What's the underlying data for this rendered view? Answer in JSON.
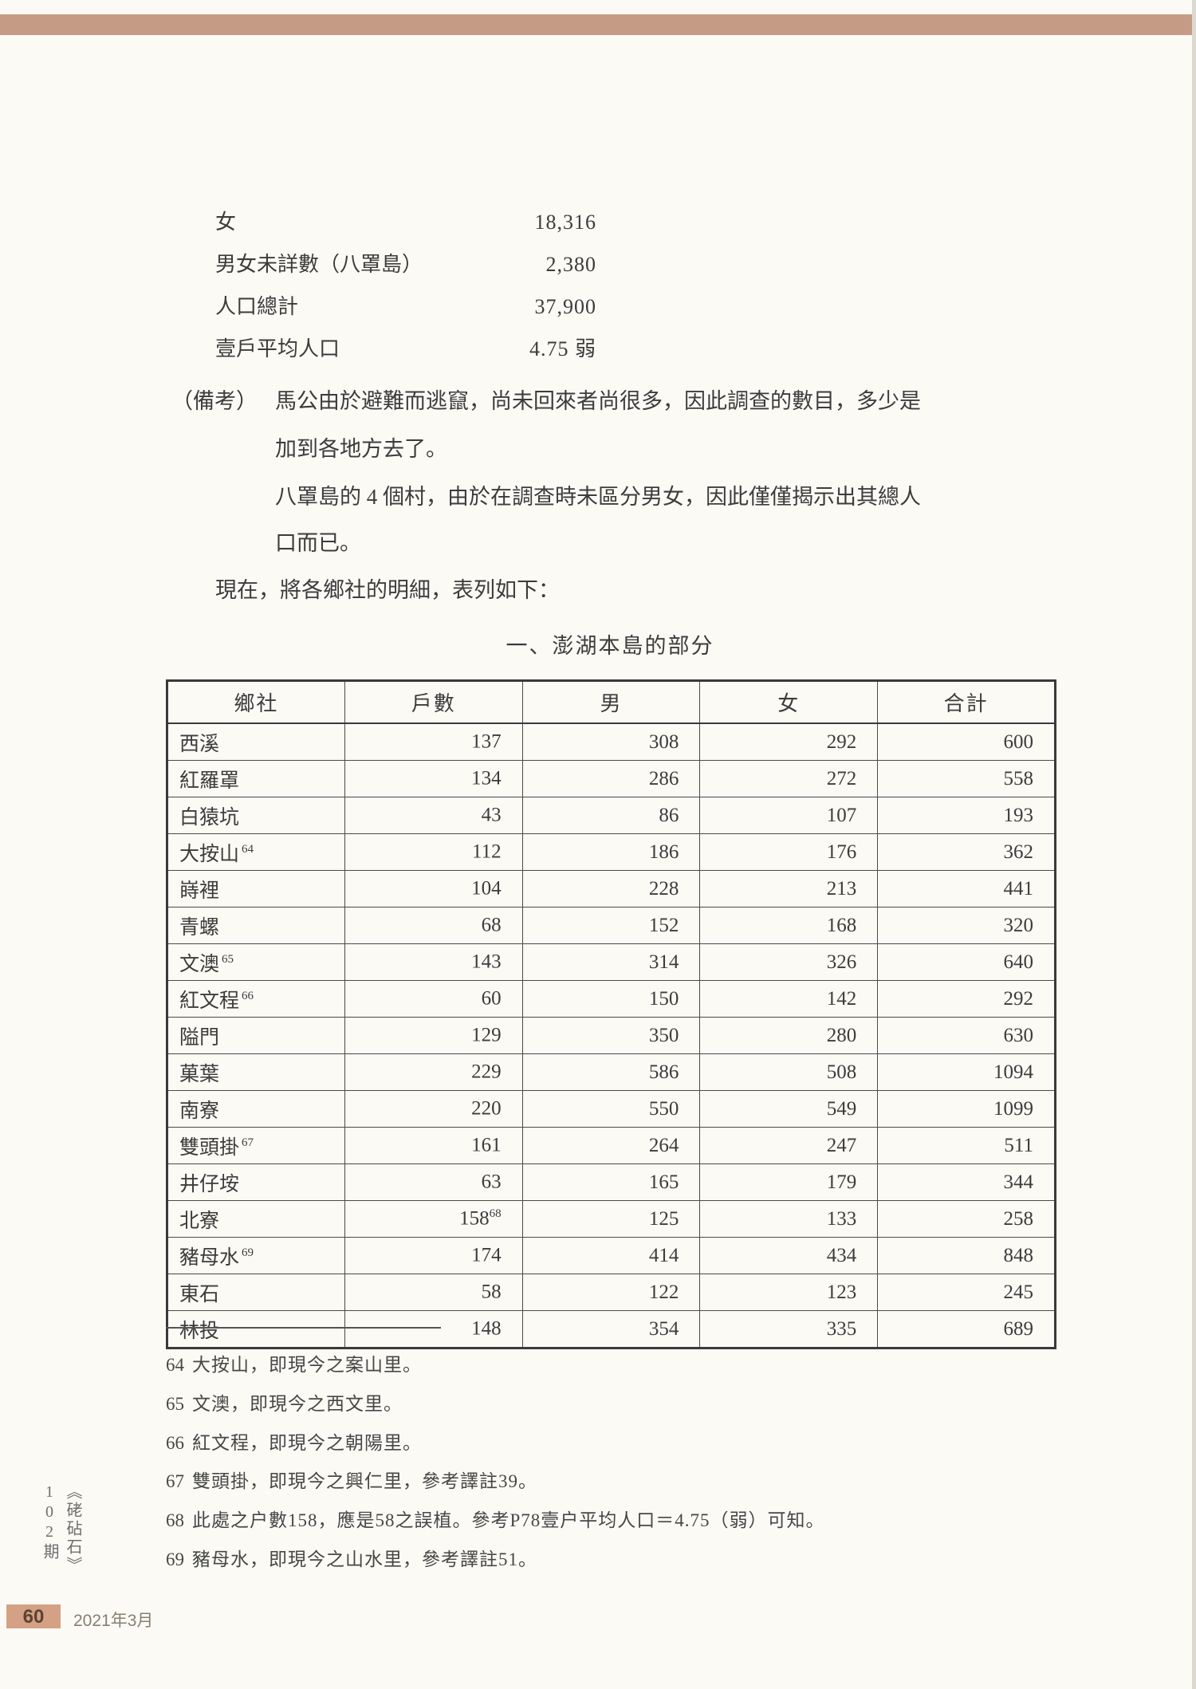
{
  "colors": {
    "top_band": "#c69b85",
    "badge_bg": "#d4a185",
    "badge_text": "#5c4330"
  },
  "stats": {
    "rows": [
      {
        "label": "女",
        "value": "18,316"
      },
      {
        "label": "男女未詳數（八罩島）",
        "value": "2,380"
      },
      {
        "label": "人口總計",
        "value": "37,900"
      },
      {
        "label": "壹戶平均人口",
        "value": "4.75 弱"
      }
    ]
  },
  "remarks": {
    "label": "（備考）",
    "line1": "馬公由於避難而逃竄，尚未回來者尚很多，因此調查的數目，多少是",
    "line2": "加到各地方去了。",
    "line3": "八罩島的 4 個村，由於在調查時未區分男女，因此僅僅揭示出其總人",
    "line4": "口而已。"
  },
  "intro": "現在，將各鄉社的明細，表列如下：",
  "table": {
    "title": "一、澎湖本島的部分",
    "headers": [
      "鄉社",
      "戶數",
      "男",
      "女",
      "合計"
    ],
    "rows": [
      {
        "name": "西溪",
        "households": "137",
        "male": "308",
        "female": "292",
        "total": "600"
      },
      {
        "name": "紅羅罩",
        "households": "134",
        "male": "286",
        "female": "272",
        "total": "558"
      },
      {
        "name": "白猿坑",
        "households": "43",
        "male": "86",
        "female": "107",
        "total": "193"
      },
      {
        "name": "大按山",
        "name_sup": "64",
        "households": "112",
        "male": "186",
        "female": "176",
        "total": "362"
      },
      {
        "name": "嵵裡",
        "households": "104",
        "male": "228",
        "female": "213",
        "total": "441"
      },
      {
        "name": "青螺",
        "households": "68",
        "male": "152",
        "female": "168",
        "total": "320"
      },
      {
        "name": "文澳",
        "name_sup": "65",
        "households": "143",
        "male": "314",
        "female": "326",
        "total": "640"
      },
      {
        "name": "紅文程",
        "name_sup": "66",
        "households": "60",
        "male": "150",
        "female": "142",
        "total": "292"
      },
      {
        "name": "隘門",
        "households": "129",
        "male": "350",
        "female": "280",
        "total": "630"
      },
      {
        "name": "菓葉",
        "households": "229",
        "male": "586",
        "female": "508",
        "total": "1094"
      },
      {
        "name": "南寮",
        "households": "220",
        "male": "550",
        "female": "549",
        "total": "1099"
      },
      {
        "name": "雙頭掛",
        "name_sup": "67",
        "households": "161",
        "male": "264",
        "female": "247",
        "total": "511"
      },
      {
        "name": "井仔垵",
        "households": "63",
        "male": "165",
        "female": "179",
        "total": "344"
      },
      {
        "name": "北寮",
        "households": "158",
        "households_sup": "68",
        "male": "125",
        "female": "133",
        "total": "258"
      },
      {
        "name": "豬母水",
        "name_sup": "69",
        "households": "174",
        "male": "414",
        "female": "434",
        "total": "848"
      },
      {
        "name": "東石",
        "households": "58",
        "male": "122",
        "female": "123",
        "total": "245"
      },
      {
        "name": "林投",
        "households": "148",
        "male": "354",
        "female": "335",
        "total": "689"
      }
    ]
  },
  "footnotes": [
    {
      "num": "64",
      "text": "大按山，即現今之案山里。"
    },
    {
      "num": "65",
      "text": "文澳，即現今之西文里。"
    },
    {
      "num": "66",
      "text": "紅文程，即現今之朝陽里。"
    },
    {
      "num": "67",
      "text": "雙頭掛，即現今之興仁里，參考譯註39。"
    },
    {
      "num": "68",
      "text": "此處之户數158，應是58之誤植。參考P78壹户平均人口＝4.75（弱）可知。"
    },
    {
      "num": "69",
      "text": "豬母水，即現今之山水里，參考譯註51。"
    }
  ],
  "footer": {
    "journal": "《硓砧石》102期",
    "page_number": "60",
    "issue_date": "2021年3月"
  }
}
